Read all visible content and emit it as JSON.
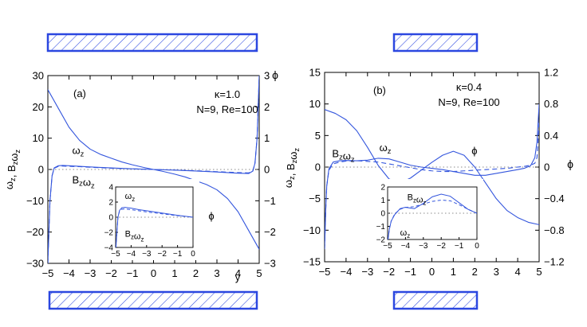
{
  "colors": {
    "curve": "#3355dd",
    "axis": "#000000",
    "hatch": "#2b47e0",
    "zero_line": "#666666"
  },
  "chart_data": [
    {
      "type": "line",
      "panel_label": "(a)",
      "params": [
        "κ=1.0",
        "N=9, Re=100"
      ],
      "xlim": [
        -5,
        5
      ],
      "ylim": [
        -30,
        30
      ],
      "y2lim": [
        -3,
        3
      ],
      "xticks": [
        -5,
        -4,
        -3,
        -2,
        -1,
        0,
        1,
        2,
        3,
        4,
        5
      ],
      "yticks": [
        -30,
        -20,
        -10,
        0,
        10,
        20,
        30
      ],
      "y2ticks": [
        -3,
        -2,
        -1,
        0,
        1,
        2,
        3
      ],
      "xlabel": "y",
      "ylabel": "ω_z, B_zω_z",
      "y2label": "ϕ",
      "curve_labels": [
        {
          "text": "ω",
          "sub": "z",
          "x": -3.85,
          "y": 5
        },
        {
          "text": "B",
          "sub": "z",
          "text2": "ω",
          "sub2": "z",
          "x": -3.85,
          "y": -4.5
        },
        {
          "text": "ϕ",
          "sub": "",
          "x": 2.6,
          "y": -16
        }
      ],
      "series": [
        {
          "label": "ω_z",
          "axis": "left",
          "style": "solid",
          "x": [
            -5,
            -4.95,
            -4.9,
            -4.8,
            -4.7,
            -4.5,
            -4.3,
            -4,
            -3.5,
            -3,
            -2,
            -1,
            0,
            1,
            2,
            3,
            4,
            4.5,
            4.7,
            4.8,
            4.9,
            4.95,
            5
          ],
          "y": [
            -30,
            -20,
            -10,
            -2,
            0.5,
            1.2,
            1.3,
            1.2,
            1.0,
            0.8,
            0.5,
            0.2,
            0,
            -0.2,
            -0.5,
            -0.8,
            -1.2,
            -1.3,
            -0.5,
            2,
            10,
            20,
            30
          ]
        },
        {
          "label": "B_zω_z",
          "axis": "left",
          "style": "dashed",
          "x": [
            -5,
            -4.95,
            -4.9,
            -4.8,
            -4.7,
            -4.5,
            -4.3,
            -4,
            -3.5,
            -3,
            -2,
            -1,
            0,
            1,
            2,
            3,
            4,
            4.5,
            4.7,
            4.8,
            4.9,
            4.95,
            5
          ],
          "y": [
            -30,
            -20,
            -10,
            -2,
            0.4,
            1.0,
            1.1,
            1.0,
            0.9,
            0.7,
            0.4,
            0.2,
            0,
            -0.2,
            -0.4,
            -0.7,
            -1.0,
            -1.1,
            -0.4,
            2,
            10,
            20,
            30
          ]
        },
        {
          "label": "ϕ",
          "axis": "right",
          "style": "solid",
          "x": [
            -5,
            -4.5,
            -4,
            -3.5,
            -3,
            -2.5,
            -2,
            -1.5,
            -1,
            -0.5,
            0,
            0.5,
            1,
            1.5,
            2,
            2.5,
            3,
            3.5,
            4,
            4.5,
            5
          ],
          "y": [
            2.55,
            1.95,
            1.35,
            0.93,
            0.65,
            0.48,
            0.36,
            0.24,
            0.15,
            0.07,
            0,
            -0.07,
            -0.15,
            -0.24,
            -0.36,
            -0.48,
            -0.65,
            -0.93,
            -1.35,
            -1.95,
            -2.55
          ]
        }
      ],
      "inset": {
        "xlim": [
          -5,
          0
        ],
        "ylim": [
          -4,
          4
        ],
        "xticks": [
          -5,
          -4,
          -3,
          -2,
          -1,
          0
        ],
        "yticks": [
          -4,
          -2,
          0,
          2,
          4
        ],
        "labels": [
          {
            "text": "ω",
            "sub": "z",
            "x": -4.4,
            "y": 2.4
          },
          {
            "text": "B",
            "sub": "z",
            "text2": "ω",
            "sub2": "z",
            "x": -4.4,
            "y": -2.6
          }
        ],
        "series": [
          {
            "label": "ω_z",
            "style": "solid",
            "x": [
              -4.98,
              -4.92,
              -4.85,
              -4.75,
              -4.6,
              -4.4,
              -4,
              -3.5,
              -3,
              -2,
              -1,
              0
            ],
            "y": [
              -4,
              -2,
              0,
              0.9,
              1.25,
              1.3,
              1.2,
              1.0,
              0.85,
              0.55,
              0.25,
              0
            ]
          },
          {
            "label": "B_zω_z",
            "style": "dashed",
            "x": [
              -4.98,
              -4.92,
              -4.85,
              -4.75,
              -4.6,
              -4.4,
              -4,
              -3.5,
              -3,
              -2,
              -1,
              0
            ],
            "y": [
              -4,
              -2,
              0,
              0.8,
              1.05,
              1.1,
              1.0,
              0.85,
              0.7,
              0.45,
              0.2,
              0
            ]
          }
        ]
      }
    },
    {
      "type": "line",
      "panel_label": "(b)",
      "params": [
        "κ=0.4",
        "N=9, Re=100"
      ],
      "xlim": [
        -5,
        5
      ],
      "ylim": [
        -15,
        15
      ],
      "y2lim": [
        -1.2,
        1.2
      ],
      "xticks": [
        -5,
        -4,
        -3,
        -2,
        -1,
        0,
        1,
        2,
        3,
        4,
        5
      ],
      "yticks": [
        -15,
        -10,
        -5,
        0,
        5,
        10,
        15
      ],
      "y2ticks": [
        -1.2,
        -0.8,
        -0.4,
        0,
        0.4,
        0.8,
        1.2
      ],
      "xlabel": "",
      "ylabel": "ω_z, B_zω_z",
      "y2label": "ϕ",
      "curve_labels": [
        {
          "text": "B",
          "sub": "z",
          "text2": "ω",
          "sub2": "z",
          "x": -4.65,
          "y": 1.6
        },
        {
          "text": "ω",
          "sub": "z",
          "x": -2.45,
          "y": 2.5
        },
        {
          "text": "ϕ",
          "sub": "",
          "x": 1.85,
          "y": 2.0
        }
      ],
      "series": [
        {
          "label": "ω_z",
          "axis": "left",
          "style": "solid",
          "x": [
            -5,
            -4.95,
            -4.9,
            -4.8,
            -4.6,
            -4.3,
            -4,
            -3.5,
            -3,
            -2.5,
            -2,
            -1.5,
            -1,
            -0.5,
            0,
            0.5,
            1,
            1.5,
            2,
            2.5,
            3,
            3.5,
            4,
            4.3,
            4.6,
            4.8,
            4.9,
            4.95,
            5
          ],
          "y": [
            -13,
            -7,
            -3,
            -0.3,
            0.8,
            1.0,
            1.05,
            1.0,
            1.1,
            1.4,
            1.3,
            0.8,
            0.3,
            0,
            -0.2,
            -0.4,
            -0.7,
            -1.0,
            -1.3,
            -1.3,
            -1.0,
            -0.7,
            -0.4,
            -0.2,
            0.2,
            1.5,
            4,
            7,
            10
          ]
        },
        {
          "label": "B_zω_z",
          "axis": "left",
          "style": "dashed",
          "x": [
            -5,
            -4.95,
            -4.9,
            -4.8,
            -4.6,
            -4.3,
            -4,
            -3.5,
            -3,
            -2.5,
            -2,
            -1.5,
            -1,
            -0.5,
            0,
            0.5,
            1,
            1.5,
            2,
            2.5,
            3,
            3.5,
            4,
            4.3,
            4.6,
            4.8,
            4.9,
            4.95,
            5
          ],
          "y": [
            -13,
            -7,
            -3,
            -0.5,
            0.5,
            0.8,
            0.95,
            1.0,
            0.9,
            0.8,
            0.5,
            0.2,
            -0.1,
            -0.4,
            -0.6,
            -0.7,
            -0.7,
            -0.6,
            -0.5,
            -0.4,
            -0.3,
            -0.2,
            0,
            0.1,
            0.3,
            0.6,
            1.5,
            4,
            7
          ]
        },
        {
          "label": "ϕ",
          "axis": "right",
          "style": "solid",
          "x": [
            -5,
            -4.5,
            -4,
            -3.5,
            -3,
            -2.5,
            -2,
            -1.5,
            -1,
            -0.5,
            0,
            0.5,
            1,
            1.5,
            2,
            2.5,
            3,
            3.5,
            4,
            4.5,
            5
          ],
          "y": [
            0.73,
            0.68,
            0.6,
            0.46,
            0.25,
            0.02,
            -0.15,
            -0.2,
            -0.14,
            -0.04,
            0.06,
            0.15,
            0.2,
            0.15,
            0.0,
            -0.2,
            -0.4,
            -0.55,
            -0.64,
            -0.7,
            -0.73
          ]
        }
      ],
      "inset": {
        "xlim": [
          -5,
          0
        ],
        "ylim": [
          -2,
          2
        ],
        "xticks": [
          -5,
          -4,
          -3,
          -2,
          -1,
          0
        ],
        "yticks": [
          -2,
          -1,
          0,
          1,
          2
        ],
        "labels": [
          {
            "text": "B",
            "sub": "z",
            "text2": "ω",
            "sub2": "z",
            "x": -3.9,
            "y": 1.0
          },
          {
            "text": "ω",
            "sub": "z",
            "x": -4.3,
            "y": -1.7
          }
        ],
        "series": [
          {
            "label": "ω_z",
            "style": "solid",
            "x": [
              -4.98,
              -4.9,
              -4.8,
              -4.6,
              -4.3,
              -4,
              -3.5,
              -3,
              -2.5,
              -2,
              -1.5,
              -1,
              -0.5,
              0
            ],
            "y": [
              -2,
              -1.2,
              -0.6,
              -0.1,
              0.35,
              0.45,
              0.35,
              0.75,
              1.25,
              1.45,
              1.3,
              0.8,
              0.3,
              0
            ]
          },
          {
            "label": "B_zω_z",
            "style": "dashed",
            "x": [
              -4.98,
              -4.9,
              -4.8,
              -4.6,
              -4.3,
              -4,
              -3.5,
              -3,
              -2.5,
              -2,
              -1.5,
              -1,
              -0.5,
              0
            ],
            "y": [
              -2,
              -1.2,
              -0.6,
              -0.05,
              0.3,
              0.45,
              0.5,
              0.7,
              0.9,
              1.0,
              0.95,
              0.65,
              0.3,
              0
            ]
          }
        ]
      }
    }
  ]
}
